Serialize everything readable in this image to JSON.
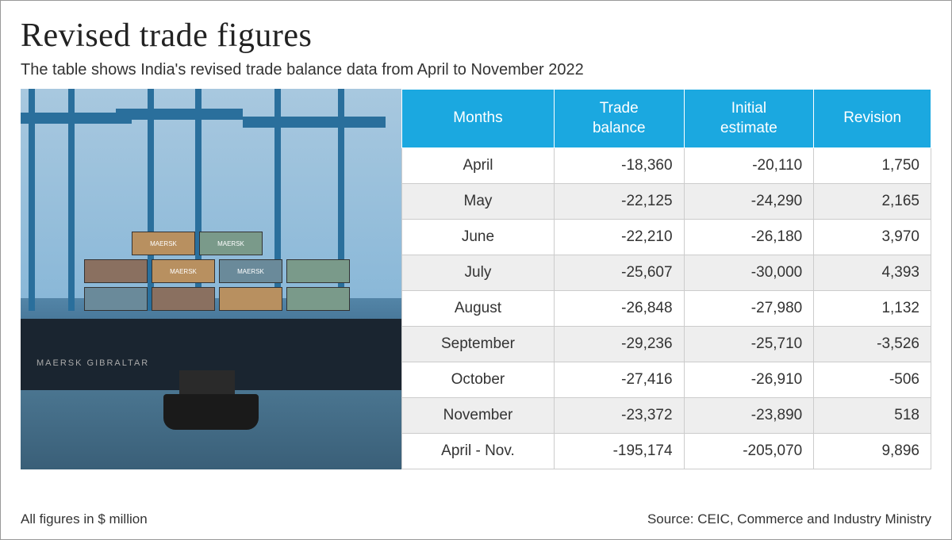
{
  "title": "Revised trade figures",
  "subtitle": "The table shows India's revised trade balance data from April to November 2022",
  "table": {
    "columns": [
      "Months",
      "Trade balance",
      "Initial estimate",
      "Revision"
    ],
    "header_bg": "#1ba8e0",
    "header_text_color": "#ffffff",
    "row_alt_bg": "#eeeeee",
    "row_bg": "#ffffff",
    "border_color": "#cccccc",
    "font_size": 19,
    "rows": [
      {
        "month": "April",
        "balance": "-18,360",
        "initial": "-20,110",
        "revision": "1,750"
      },
      {
        "month": "May",
        "balance": "-22,125",
        "initial": "-24,290",
        "revision": "2,165"
      },
      {
        "month": "June",
        "balance": "-22,210",
        "initial": "-26,180",
        "revision": "3,970"
      },
      {
        "month": "July",
        "balance": "-25,607",
        "initial": "-30,000",
        "revision": "4,393"
      },
      {
        "month": "August",
        "balance": "-26,848",
        "initial": "-27,980",
        "revision": "1,132"
      },
      {
        "month": "September",
        "balance": "-29,236",
        "initial": "-25,710",
        "revision": "-3,526"
      },
      {
        "month": "October",
        "balance": "-27,416",
        "initial": "-26,910",
        "revision": "-506"
      },
      {
        "month": "November",
        "balance": "-23,372",
        "initial": "-23,890",
        "revision": "518"
      },
      {
        "month": "April - Nov.",
        "balance": "-195,174",
        "initial": "-205,070",
        "revision": "9,896"
      }
    ]
  },
  "footer_left": "All figures in $ million",
  "footer_right": "Source: CEIC, Commerce and Industry Ministry",
  "image": {
    "description": "container-ship-port",
    "ship_name": "MAERSK GIBRALTAR",
    "container_label": "MAERSK",
    "sky_color": "#8ab8d8",
    "crane_color": "#2a6f9c",
    "hull_color": "#1a2530",
    "water_color": "#4a7590",
    "container_colors": [
      "#b89060",
      "#7a9a8a",
      "#8a7060",
      "#6a8a9a"
    ]
  }
}
